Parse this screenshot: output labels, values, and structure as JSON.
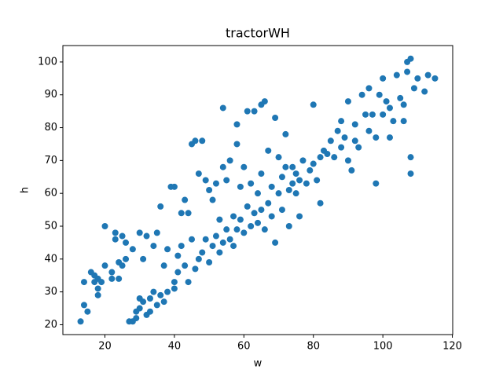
{
  "chart_data": {
    "type": "scatter",
    "title": "tractorWH",
    "x_label": "w",
    "y_label": "h",
    "color": "#1f77b4",
    "x": [
      13,
      14,
      15,
      14,
      16,
      17,
      17,
      18,
      18,
      18,
      19,
      20,
      20,
      22,
      22,
      23,
      23,
      24,
      24,
      25,
      25,
      26,
      26,
      27,
      28,
      28,
      29,
      29,
      30,
      30,
      30,
      31,
      31,
      32,
      32,
      33,
      33,
      34,
      34,
      35,
      35,
      36,
      36,
      37,
      37,
      38,
      38,
      39,
      40,
      40,
      40,
      41,
      41,
      42,
      42,
      43,
      43,
      44,
      44,
      45,
      45,
      46,
      46,
      47,
      47,
      48,
      48,
      49,
      49,
      50,
      50,
      51,
      51,
      52,
      52,
      53,
      53,
      54,
      54,
      54,
      55,
      55,
      56,
      56,
      57,
      57,
      58,
      58,
      58,
      59,
      59,
      60,
      60,
      61,
      61,
      62,
      62,
      63,
      63,
      64,
      64,
      65,
      65,
      65,
      66,
      66,
      67,
      67,
      68,
      68,
      69,
      69,
      70,
      70,
      71,
      71,
      72,
      72,
      73,
      73,
      74,
      74,
      75,
      75,
      76,
      76,
      77,
      78,
      79,
      80,
      80,
      81,
      82,
      82,
      83,
      84,
      85,
      86,
      87,
      88,
      88,
      89,
      90,
      90,
      91,
      92,
      92,
      93,
      94,
      95,
      96,
      96,
      97,
      98,
      98,
      99,
      100,
      100,
      101,
      102,
      102,
      103,
      104,
      105,
      106,
      106,
      107,
      107,
      108,
      108,
      108,
      109,
      110,
      112,
      113,
      115
    ],
    "values": [
      21,
      26,
      24,
      33,
      36,
      35,
      33,
      34,
      31,
      29,
      33,
      38,
      50,
      34,
      36,
      46,
      48,
      39,
      34,
      38,
      47,
      45,
      40,
      21,
      21,
      43,
      22,
      24,
      48,
      25,
      28,
      27,
      40,
      47,
      23,
      24,
      28,
      30,
      44,
      48,
      26,
      56,
      29,
      27,
      38,
      43,
      30,
      62,
      62,
      33,
      31,
      41,
      36,
      54,
      44,
      38,
      58,
      54,
      33,
      75,
      46,
      76,
      37,
      66,
      40,
      76,
      42,
      64,
      46,
      61,
      39,
      58,
      44,
      63,
      47,
      52,
      42,
      86,
      68,
      45,
      64,
      49,
      70,
      46,
      53,
      44,
      75,
      81,
      49,
      62,
      52,
      68,
      48,
      85,
      56,
      63,
      50,
      85,
      54,
      60,
      51,
      87,
      66,
      55,
      88,
      49,
      73,
      57,
      62,
      53,
      83,
      45,
      71,
      60,
      65,
      55,
      78,
      68,
      61,
      50,
      68,
      63,
      66,
      60,
      64,
      53,
      70,
      63,
      67,
      87,
      69,
      64,
      57,
      71,
      73,
      72,
      76,
      71,
      79,
      74,
      82,
      77,
      70,
      88,
      67,
      76,
      81,
      74,
      90,
      84,
      79,
      92,
      84,
      63,
      77,
      90,
      84,
      95,
      88,
      77,
      86,
      82,
      96,
      89,
      87,
      82,
      97,
      100,
      71,
      66,
      101,
      92,
      95,
      91,
      96,
      95
    ],
    "xlim": [
      7.9,
      120.1
    ],
    "ylim": [
      17,
      105
    ],
    "xticks": [
      20,
      40,
      60,
      80,
      100,
      120
    ],
    "yticks": [
      20,
      30,
      40,
      50,
      60,
      70,
      80,
      90,
      100
    ]
  }
}
